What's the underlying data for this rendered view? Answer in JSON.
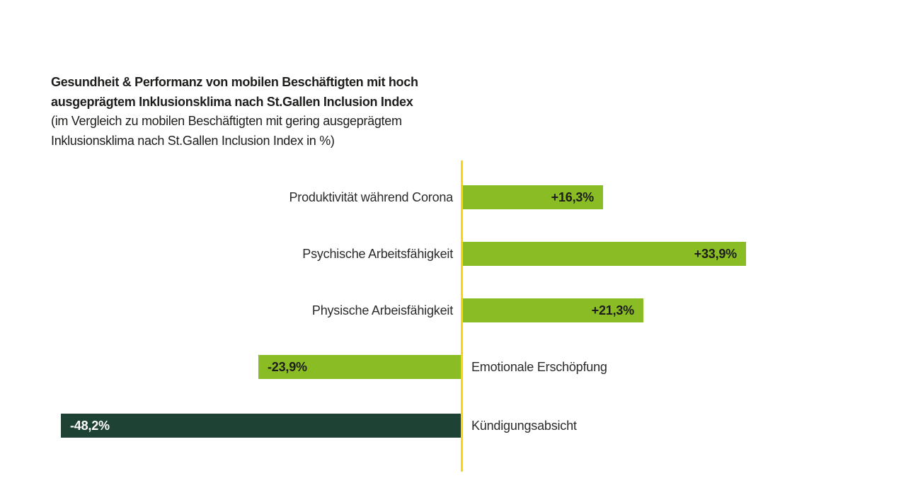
{
  "chart": {
    "title_line1": "Gesundheit & Performanz von mobilen Beschäftigten mit hoch",
    "title_line2": "ausgeprägtem Inklusionsklima nach St.Gallen Inclusion Index",
    "subtitle_line1": "(im Vergleich zu mobilen Beschäftigten mit gering ausgeprägtem",
    "subtitle_line2": "Inklusionsklima nach St.Gallen Inclusion Index in %)"
  },
  "chart_data": {
    "type": "bar",
    "orientation": "horizontal-diverging",
    "title": "Gesundheit & Performanz von mobilen Beschäftigten mit hoch ausgeprägtem Inklusionsklima nach St.Gallen Inclusion Index",
    "subtitle": "(im Vergleich zu mobilen Beschäftigten mit gering ausgeprägtem Inklusionsklima nach St.Gallen Inclusion Index in %)",
    "unit": "%",
    "categories": [
      "Produktivität während Corona",
      "Psychische Arbeitsfähigkeit",
      "Physische Arbeisfähigkeit",
      "Emotionale Erschöpfung",
      "Kündigungsabsicht"
    ],
    "rows": [
      {
        "label": "Produktivität während Corona",
        "value": 16.3,
        "value_label": "+16,3%",
        "color": "green"
      },
      {
        "label": "Psychische Arbeitsfähigkeit",
        "value": 33.9,
        "value_label": "+33,9%",
        "color": "green"
      },
      {
        "label": "Physische Arbeisfähigkeit",
        "value": 21.3,
        "value_label": "+21,3%",
        "color": "green"
      },
      {
        "label": "Emotionale Erschöpfung",
        "value": -23.9,
        "value_label": "-23,9%",
        "color": "green"
      },
      {
        "label": "Kündigungsabsicht",
        "value": -48.2,
        "value_label": "-48,2%",
        "color": "dark_green"
      }
    ],
    "colors": {
      "green": "#8ABD24",
      "dark_green": "#1E4233",
      "axis_yellow": "#FFD500",
      "text": "#1D1D1B",
      "value_on_dark": "#FFFFFF"
    },
    "axis": {
      "zero_line": true,
      "gridlines": false,
      "legend": false,
      "xlim": [
        -55,
        55
      ]
    }
  }
}
